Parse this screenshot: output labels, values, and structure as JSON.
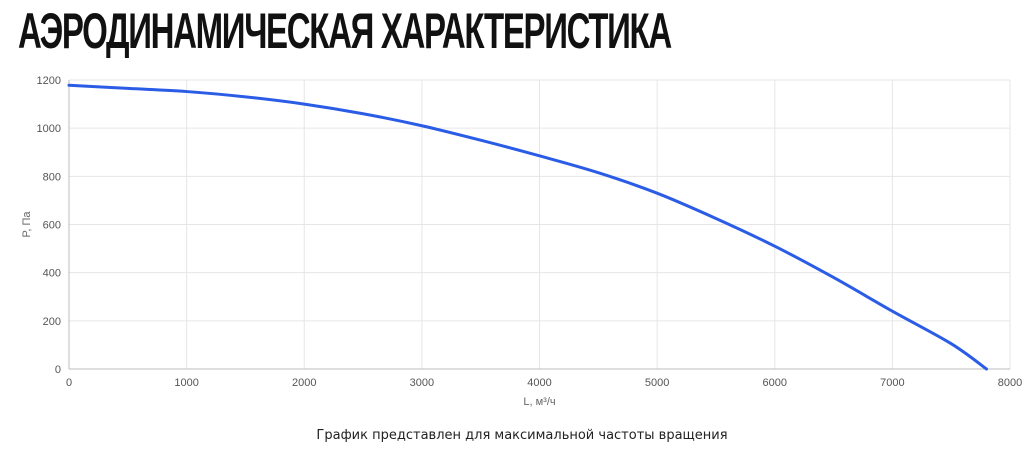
{
  "title": "АЭРОДИНАМИЧЕСКАЯ ХАРАКТЕРИСТИКА",
  "footnote": "График представлен для максимальной частоты вращения",
  "colors": {
    "line": "#2b5ce6",
    "grid": "#e6e6e6",
    "axis": "#bdbdbd",
    "text": "#555555"
  },
  "chart_data": {
    "type": "line",
    "xlabel": "L, м³/ч",
    "ylabel": "P, Па",
    "xlim": [
      0,
      8000
    ],
    "ylim": [
      0,
      1200
    ],
    "xticks": [
      0,
      1000,
      2000,
      3000,
      4000,
      5000,
      6000,
      7000,
      8000
    ],
    "yticks": [
      0,
      200,
      400,
      600,
      800,
      1000,
      1200
    ],
    "grid": true,
    "legend": "none",
    "series": [
      {
        "x": [
          0,
          500,
          1000,
          1500,
          2000,
          2500,
          3000,
          3500,
          4000,
          4500,
          5000,
          5500,
          6000,
          6500,
          7000,
          7500,
          7800
        ],
        "values": [
          1178,
          1165,
          1152,
          1130,
          1100,
          1060,
          1010,
          950,
          885,
          815,
          730,
          625,
          510,
          380,
          240,
          105,
          0
        ]
      }
    ]
  }
}
